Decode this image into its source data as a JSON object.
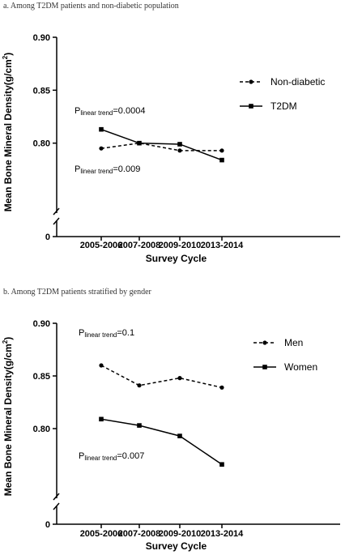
{
  "chart_data": [
    {
      "type": "line",
      "title": "a.   Among T2DM patients and non-diabetic population",
      "xlabel": "Survey Cycle",
      "ylabel": "Mean Bone Mineral Density(g/cm",
      "ylabel_sup": "2",
      "ylabel_end": ")",
      "categories": [
        "2005-2006",
        "2007-2008",
        "2009-2010",
        "2013-2014"
      ],
      "y_ticks": [
        "0.90",
        "0.85",
        "0.80",
        "0"
      ],
      "ylim": [
        0.75,
        0.9
      ],
      "axis_break": true,
      "legend_position": "top-right",
      "series": [
        {
          "name": "Non-diabetic",
          "style": "dashed",
          "marker": "circle",
          "values": [
            0.795,
            0.8,
            0.793,
            0.793
          ]
        },
        {
          "name": "T2DM",
          "style": "solid",
          "marker": "square",
          "values": [
            0.813,
            0.8,
            0.799,
            0.784
          ]
        }
      ],
      "annotations": [
        {
          "prefix": "P",
          "sub": "linear trend",
          "suffix": "=0.0004"
        },
        {
          "prefix": "P",
          "sub": "linear trend",
          "suffix": "=0.009"
        }
      ]
    },
    {
      "type": "line",
      "title": "b.   Among T2DM patients stratified by gender",
      "xlabel": "Survey Cycle",
      "ylabel": "Mean Bone Mineral Density(g/cm",
      "ylabel_sup": "2",
      "ylabel_end": ")",
      "categories": [
        "2005-2006",
        "2007-2008",
        "2009-2010",
        "2013-2014"
      ],
      "y_ticks": [
        "0.90",
        "0.85",
        "0.80",
        "0"
      ],
      "ylim": [
        0.75,
        0.9
      ],
      "axis_break": true,
      "legend_position": "top-right",
      "series": [
        {
          "name": "Men",
          "style": "dashed",
          "marker": "circle",
          "values": [
            0.86,
            0.841,
            0.848,
            0.839
          ]
        },
        {
          "name": "Women",
          "style": "solid",
          "marker": "square",
          "values": [
            0.809,
            0.803,
            0.793,
            0.766
          ]
        }
      ],
      "annotations": [
        {
          "prefix": "P",
          "sub": "linear trend",
          "suffix": "=0.1"
        },
        {
          "prefix": "P",
          "sub": "linear trend",
          "suffix": "=0.007"
        }
      ]
    }
  ]
}
